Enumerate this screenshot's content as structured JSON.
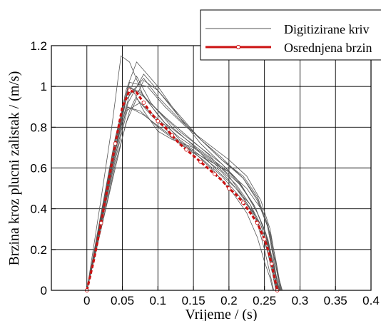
{
  "chart_data": {
    "type": "line",
    "title": "",
    "xlabel": "Vrijeme / (s)",
    "ylabel": "Brzina kroz plucni zalistak / (m/s)",
    "xlim": [
      -0.05,
      0.4
    ],
    "ylim": [
      0,
      1.2
    ],
    "xticks": [
      "0",
      "0.05",
      "0.1",
      "0.15",
      "0.2",
      "0.25",
      "0.3",
      "0.35",
      "0.4"
    ],
    "yticks": [
      "0",
      "0.2",
      "0.4",
      "0.6",
      "0.8",
      "1",
      "1.2"
    ],
    "grid": true,
    "legend": {
      "placement": "top-right",
      "entries": [
        "Digitizirane kriv",
        "Osrednjena brzin"
      ]
    },
    "colors": {
      "digitized": "#555555",
      "averaged": "#cc1111",
      "grid": "#000000"
    },
    "series": [
      {
        "x": [
          0,
          0.02,
          0.04,
          0.055,
          0.075,
          0.1,
          0.13,
          0.16,
          0.19,
          0.21,
          0.23,
          0.245,
          0.255,
          0.262,
          0.266,
          0.27
        ],
        "y": [
          0,
          0.35,
          0.68,
          0.9,
          0.88,
          0.8,
          0.72,
          0.65,
          0.56,
          0.48,
          0.4,
          0.32,
          0.22,
          0.12,
          0.05,
          0
        ]
      },
      {
        "x": [
          0,
          0.02,
          0.04,
          0.058,
          0.08,
          0.11,
          0.14,
          0.17,
          0.2,
          0.22,
          0.24,
          0.255,
          0.263,
          0.268,
          0.272
        ],
        "y": [
          0,
          0.38,
          0.75,
          1.0,
          0.95,
          0.82,
          0.74,
          0.66,
          0.58,
          0.5,
          0.38,
          0.25,
          0.12,
          0.04,
          0
        ]
      },
      {
        "x": [
          0,
          0.02,
          0.035,
          0.048,
          0.06,
          0.08,
          0.11,
          0.14,
          0.17,
          0.2,
          0.22,
          0.24,
          0.25,
          0.258,
          0.263
        ],
        "y": [
          0,
          0.45,
          0.8,
          1.15,
          1.12,
          0.95,
          0.85,
          0.76,
          0.67,
          0.56,
          0.46,
          0.33,
          0.2,
          0.08,
          0
        ]
      },
      {
        "x": [
          0,
          0.02,
          0.04,
          0.055,
          0.07,
          0.1,
          0.13,
          0.16,
          0.19,
          0.21,
          0.235,
          0.252,
          0.262,
          0.268,
          0.271
        ],
        "y": [
          0,
          0.36,
          0.72,
          0.98,
          1.12,
          1.0,
          0.85,
          0.72,
          0.62,
          0.55,
          0.42,
          0.28,
          0.14,
          0.05,
          0
        ]
      },
      {
        "x": [
          0,
          0.02,
          0.04,
          0.058,
          0.08,
          0.1,
          0.13,
          0.16,
          0.19,
          0.22,
          0.24,
          0.256,
          0.264,
          0.27,
          0.273
        ],
        "y": [
          0,
          0.33,
          0.66,
          0.92,
          1.06,
          0.98,
          0.85,
          0.74,
          0.65,
          0.55,
          0.44,
          0.3,
          0.15,
          0.06,
          0
        ]
      },
      {
        "x": [
          0,
          0.02,
          0.04,
          0.055,
          0.07,
          0.09,
          0.12,
          0.15,
          0.18,
          0.205,
          0.225,
          0.24,
          0.25,
          0.258,
          0.262
        ],
        "y": [
          0,
          0.3,
          0.6,
          0.82,
          0.94,
          0.86,
          0.76,
          0.68,
          0.58,
          0.48,
          0.38,
          0.26,
          0.14,
          0.06,
          0
        ]
      },
      {
        "x": [
          0,
          0.02,
          0.04,
          0.06,
          0.085,
          0.11,
          0.14,
          0.17,
          0.2,
          0.225,
          0.245,
          0.258,
          0.265,
          0.27,
          0.274
        ],
        "y": [
          0,
          0.36,
          0.7,
          1.02,
          1.0,
          0.9,
          0.8,
          0.72,
          0.64,
          0.56,
          0.44,
          0.3,
          0.16,
          0.06,
          0
        ]
      },
      {
        "x": [
          0,
          0.02,
          0.04,
          0.056,
          0.07,
          0.09,
          0.12,
          0.15,
          0.18,
          0.21,
          0.235,
          0.25,
          0.26,
          0.266,
          0.269
        ],
        "y": [
          0,
          0.34,
          0.68,
          0.95,
          1.05,
          0.92,
          0.8,
          0.71,
          0.6,
          0.5,
          0.38,
          0.25,
          0.12,
          0.04,
          0
        ]
      },
      {
        "x": [
          0,
          0.02,
          0.04,
          0.055,
          0.075,
          0.1,
          0.13,
          0.16,
          0.19,
          0.215,
          0.235,
          0.25,
          0.259,
          0.264,
          0.267
        ],
        "y": [
          0,
          0.33,
          0.66,
          0.88,
          0.92,
          0.84,
          0.75,
          0.68,
          0.6,
          0.52,
          0.42,
          0.3,
          0.16,
          0.06,
          0
        ]
      },
      {
        "x": [
          0,
          0.02,
          0.04,
          0.058,
          0.075,
          0.1,
          0.13,
          0.16,
          0.19,
          0.215,
          0.238,
          0.252,
          0.262,
          0.268,
          0.27
        ],
        "y": [
          0,
          0.37,
          0.74,
          1.0,
          0.97,
          0.88,
          0.78,
          0.7,
          0.62,
          0.53,
          0.4,
          0.27,
          0.13,
          0.04,
          0
        ]
      },
      {
        "x": [
          0,
          0.02,
          0.04,
          0.058,
          0.08,
          0.11,
          0.14,
          0.17,
          0.2,
          0.225,
          0.245,
          0.258,
          0.266,
          0.271,
          0.275
        ],
        "y": [
          0,
          0.32,
          0.64,
          0.9,
          0.86,
          0.78,
          0.7,
          0.64,
          0.58,
          0.5,
          0.4,
          0.28,
          0.15,
          0.05,
          0
        ]
      },
      {
        "x": [
          0,
          0.02,
          0.04,
          0.055,
          0.065,
          0.08,
          0.1,
          0.12,
          0.15,
          0.18,
          0.21,
          0.23,
          0.245,
          0.255,
          0.262,
          0.266
        ],
        "y": [
          0,
          0.35,
          0.68,
          0.93,
          0.98,
          0.88,
          0.78,
          0.74,
          0.7,
          0.62,
          0.52,
          0.42,
          0.3,
          0.18,
          0.07,
          0
        ]
      },
      {
        "x": [
          0,
          0.02,
          0.04,
          0.06,
          0.08,
          0.1,
          0.13,
          0.16,
          0.19,
          0.22,
          0.24,
          0.255,
          0.264,
          0.269,
          0.272
        ],
        "y": [
          0,
          0.34,
          0.7,
          0.96,
          1.04,
          0.95,
          0.84,
          0.74,
          0.64,
          0.56,
          0.46,
          0.32,
          0.16,
          0.06,
          0
        ]
      },
      {
        "x": [
          0,
          0.02,
          0.04,
          0.057,
          0.075,
          0.1,
          0.13,
          0.16,
          0.19,
          0.21,
          0.23,
          0.245,
          0.256,
          0.263,
          0.268
        ],
        "y": [
          0,
          0.36,
          0.72,
          0.97,
          0.98,
          0.86,
          0.74,
          0.66,
          0.58,
          0.5,
          0.42,
          0.32,
          0.2,
          0.08,
          0
        ]
      },
      {
        "x": [
          0,
          0.02,
          0.04,
          0.06,
          0.08,
          0.1,
          0.13,
          0.16,
          0.19,
          0.22,
          0.24,
          0.254,
          0.262,
          0.267,
          0.27
        ],
        "y": [
          0,
          0.3,
          0.62,
          0.88,
          1.03,
          0.98,
          0.86,
          0.74,
          0.64,
          0.55,
          0.45,
          0.32,
          0.17,
          0.06,
          0
        ]
      },
      {
        "name": "Osrednjena brzin",
        "x": [
          0,
          0.01,
          0.02,
          0.03,
          0.04,
          0.05,
          0.06,
          0.07,
          0.08,
          0.09,
          0.1,
          0.11,
          0.12,
          0.13,
          0.14,
          0.15,
          0.16,
          0.17,
          0.18,
          0.19,
          0.2,
          0.21,
          0.22,
          0.23,
          0.24,
          0.245,
          0.25,
          0.255,
          0.26,
          0.265,
          0.268
        ],
        "y": [
          0,
          0.15,
          0.33,
          0.52,
          0.72,
          0.9,
          0.98,
          0.97,
          0.92,
          0.87,
          0.83,
          0.8,
          0.76,
          0.72,
          0.69,
          0.66,
          0.63,
          0.6,
          0.57,
          0.54,
          0.5,
          0.47,
          0.43,
          0.38,
          0.33,
          0.29,
          0.25,
          0.2,
          0.13,
          0.05,
          0
        ]
      }
    ]
  }
}
